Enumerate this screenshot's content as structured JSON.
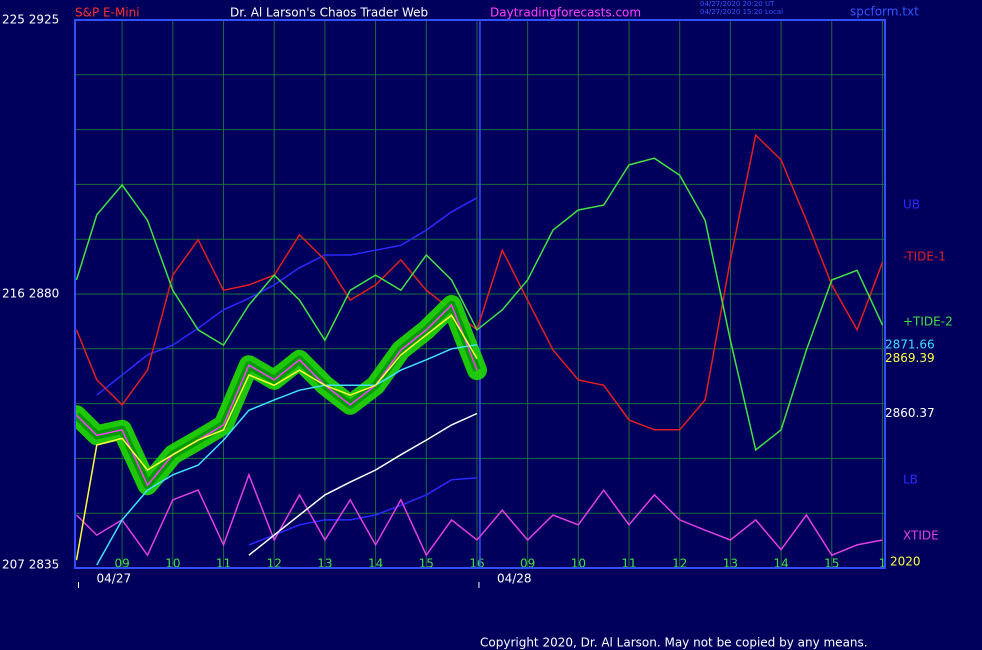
{
  "chart_data": {
    "type": "line",
    "title": "Dr. Al Larson's Chaos Trader Web",
    "instrument": "S&P E-Mini",
    "site": "Daytradingforecasts.com",
    "timestamps": [
      "04/27/2020 20:20 UT",
      "04/27/2020 15:20 Local"
    ],
    "file": "spcform.txt",
    "copyright": "Copyright 2020, Dr. Al Larson. May not be copied by any means.",
    "year": "2020",
    "dates": [
      {
        "x": -0.9,
        "label": "04/27"
      },
      {
        "x": 7,
        "label": "04/28"
      }
    ],
    "xlim": [
      -0.93,
      15.05
    ],
    "ylim": [
      2835,
      2925
    ],
    "yticks": [
      {
        "value": 2835,
        "label": "207 2835"
      },
      {
        "value": 2880,
        "label": "216 2880"
      },
      {
        "value": 2925,
        "label": "225 2925"
      }
    ],
    "ygrid": [
      2844,
      2853,
      2862,
      2871,
      2889,
      2898,
      2907,
      2916
    ],
    "xticks": [
      {
        "value": 0,
        "label": "09"
      },
      {
        "value": 1,
        "label": "10"
      },
      {
        "value": 2,
        "label": "11"
      },
      {
        "value": 3,
        "label": "12"
      },
      {
        "value": 4,
        "label": "13"
      },
      {
        "value": 5,
        "label": "14"
      },
      {
        "value": 6,
        "label": "15"
      },
      {
        "value": 7,
        "label": "16"
      },
      {
        "value": 8,
        "label": "09"
      },
      {
        "value": 9,
        "label": "10"
      },
      {
        "value": 10,
        "label": "11"
      },
      {
        "value": 11,
        "label": "12"
      },
      {
        "value": 12,
        "label": "13"
      },
      {
        "value": 13,
        "label": "14"
      },
      {
        "value": 14,
        "label": "15"
      },
      {
        "value": 15,
        "label": "1"
      }
    ],
    "grid": true,
    "x": [
      -0.9,
      -0.5,
      0,
      0.5,
      1,
      1.5,
      2,
      2.5,
      3,
      3.5,
      4,
      4.5,
      5,
      5.5,
      6,
      6.5,
      7,
      7.5,
      8,
      8.5,
      9,
      9.5,
      10,
      10.5,
      11,
      11.5,
      12,
      12.5,
      13,
      13.5,
      14,
      14.5,
      15
    ],
    "series": [
      {
        "name": "UB",
        "color": "#2a2aff",
        "values": [
          null,
          2863.4,
          2866.7,
          2870.0,
          2871.6,
          2874.4,
          2877.4,
          2879.3,
          2881.5,
          2884.3,
          2886.4,
          2886.4,
          2887.2,
          2888.0,
          2890.5,
          2893.5,
          2895.8,
          null,
          null,
          null,
          null,
          null,
          null,
          null,
          null,
          null,
          null,
          null,
          null,
          null,
          null,
          null,
          null
        ]
      },
      {
        "name": "-TIDE-1",
        "color": "#e02020",
        "values": [
          2874.1,
          2865.9,
          2861.8,
          2867.5,
          2883.1,
          2888.9,
          2880.6,
          2881.5,
          2883.1,
          2889.7,
          2885.6,
          2879.0,
          2881.5,
          2885.6,
          2880.6,
          2877.4,
          2874.1,
          2887.2,
          2879.0,
          2870.8,
          2865.9,
          2865.0,
          2859.3,
          2857.7,
          2857.7,
          2862.6,
          2885.6,
          2906.1,
          2902.0,
          2892.1,
          2881.5,
          2874.1,
          2885.2
        ]
      },
      {
        "name": "+TIDE-2",
        "color": "#44e044",
        "values": [
          2882.3,
          2893.0,
          2897.9,
          2892.1,
          2880.6,
          2874.1,
          2871.6,
          2878.2,
          2883.1,
          2879.0,
          2872.4,
          2880.6,
          2883.1,
          2880.6,
          2886.4,
          2882.3,
          2874.1,
          2877.4,
          2882.3,
          2890.5,
          2893.8,
          2894.6,
          2901.2,
          2902.3,
          2899.5,
          2892.1,
          2872.4,
          2854.4,
          2857.7,
          2870.8,
          2882.3,
          2883.9,
          2874.9
        ]
      },
      {
        "name": "LB",
        "color": "#2a2aff",
        "values": [
          null,
          null,
          null,
          null,
          null,
          null,
          null,
          2838.8,
          2840.4,
          2842.1,
          2842.9,
          2842.9,
          2843.7,
          2845.3,
          2847.0,
          2849.5,
          2849.8,
          null,
          null,
          null,
          null,
          null,
          null,
          null,
          null,
          null,
          null,
          null,
          null,
          null,
          null,
          null,
          null
        ]
      },
      {
        "name": "XTIDE",
        "color": "#e040e0",
        "values": [
          2843.7,
          2840.4,
          2842.9,
          2837.1,
          2846.2,
          2847.8,
          2838.8,
          2850.3,
          2839.6,
          2847.0,
          2839.6,
          2846.2,
          2838.8,
          2846.2,
          2837.1,
          2842.9,
          2839.6,
          2844.5,
          2839.6,
          2843.7,
          2842.1,
          2847.8,
          2842.1,
          2847.0,
          2842.9,
          2841.2,
          2839.6,
          2842.9,
          2838.0,
          2843.7,
          2837.1,
          2838.8,
          2839.6
        ]
      },
      {
        "color": "#ffffff",
        "end_label": "2860.37",
        "values": [
          null,
          null,
          null,
          null,
          null,
          null,
          null,
          2837.1,
          2840.4,
          2843.7,
          2847.0,
          2849.1,
          2851.1,
          2853.6,
          2856.0,
          2858.5,
          2860.37,
          null,
          null,
          null,
          null,
          null,
          null,
          null,
          null,
          null,
          null,
          null,
          null,
          null,
          null,
          null,
          null
        ]
      },
      {
        "color": "#ff40ff",
        "glow_color": "#22dd00",
        "values": [
          2860.1,
          2856.8,
          2857.7,
          2848.6,
          2853.6,
          2856.0,
          2858.5,
          2868.3,
          2865.9,
          2869.2,
          2865.0,
          2861.8,
          2865.0,
          2870.8,
          2874.1,
          2878.2,
          2867.5,
          null,
          null,
          null,
          null,
          null,
          null,
          null,
          null,
          null,
          null,
          null,
          null,
          null,
          null,
          null,
          null
        ]
      },
      {
        "color": "#40e0ff",
        "end_label": "2871.66",
        "values": [
          null,
          2835.5,
          2842.9,
          2847.8,
          2850.3,
          2851.9,
          2856.0,
          2860.9,
          2862.6,
          2864.2,
          2865.0,
          2865.0,
          2865.0,
          2867.5,
          2869.2,
          2871.0,
          2871.66,
          null,
          null,
          null,
          null,
          null,
          null,
          null,
          null,
          null,
          null,
          null,
          null,
          null,
          null,
          null,
          null
        ]
      },
      {
        "color": "#ffff40",
        "end_label": "2869.39",
        "values": [
          2836.3,
          2855.2,
          2856.3,
          2851.1,
          2853.6,
          2856.0,
          2857.7,
          2866.7,
          2865.0,
          2867.5,
          2865.0,
          2863.4,
          2865.0,
          2870.0,
          2873.3,
          2876.5,
          2869.39,
          null,
          null,
          null,
          null,
          null,
          null,
          null,
          null,
          null,
          null,
          null,
          null,
          null,
          null,
          null,
          null
        ]
      }
    ]
  }
}
